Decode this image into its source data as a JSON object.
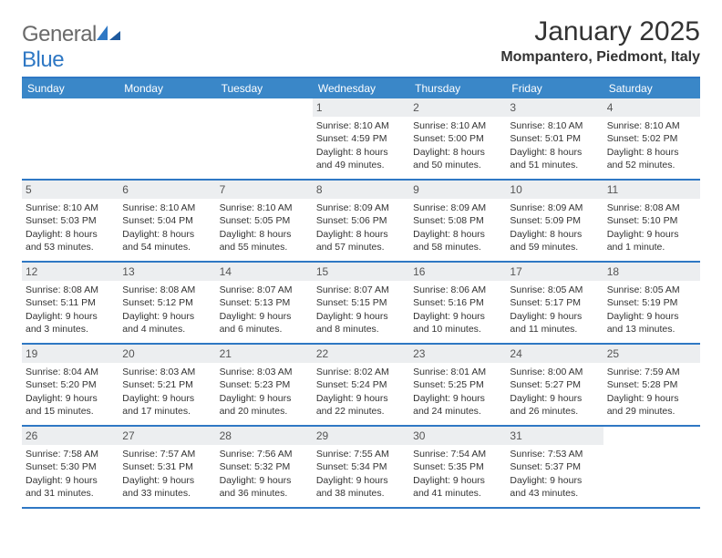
{
  "logo": {
    "part1": "General",
    "part2": "Blue"
  },
  "title": "January 2025",
  "subtitle": "Mompantero, Piedmont, Italy",
  "colors": {
    "accent": "#2f78c4",
    "header_bg": "#3a87c8",
    "daynum_bg": "#eceef0",
    "text": "#333333",
    "logo_gray": "#6a6a6a"
  },
  "day_headers": [
    "Sunday",
    "Monday",
    "Tuesday",
    "Wednesday",
    "Thursday",
    "Friday",
    "Saturday"
  ],
  "weeks": [
    [
      {
        "empty": true
      },
      {
        "empty": true
      },
      {
        "empty": true
      },
      {
        "day": "1",
        "sunrise": "8:10 AM",
        "sunset": "4:59 PM",
        "daylight_h": "8",
        "daylight_m": "49"
      },
      {
        "day": "2",
        "sunrise": "8:10 AM",
        "sunset": "5:00 PM",
        "daylight_h": "8",
        "daylight_m": "50"
      },
      {
        "day": "3",
        "sunrise": "8:10 AM",
        "sunset": "5:01 PM",
        "daylight_h": "8",
        "daylight_m": "51"
      },
      {
        "day": "4",
        "sunrise": "8:10 AM",
        "sunset": "5:02 PM",
        "daylight_h": "8",
        "daylight_m": "52"
      }
    ],
    [
      {
        "day": "5",
        "sunrise": "8:10 AM",
        "sunset": "5:03 PM",
        "daylight_h": "8",
        "daylight_m": "53"
      },
      {
        "day": "6",
        "sunrise": "8:10 AM",
        "sunset": "5:04 PM",
        "daylight_h": "8",
        "daylight_m": "54"
      },
      {
        "day": "7",
        "sunrise": "8:10 AM",
        "sunset": "5:05 PM",
        "daylight_h": "8",
        "daylight_m": "55"
      },
      {
        "day": "8",
        "sunrise": "8:09 AM",
        "sunset": "5:06 PM",
        "daylight_h": "8",
        "daylight_m": "57"
      },
      {
        "day": "9",
        "sunrise": "8:09 AM",
        "sunset": "5:08 PM",
        "daylight_h": "8",
        "daylight_m": "58"
      },
      {
        "day": "10",
        "sunrise": "8:09 AM",
        "sunset": "5:09 PM",
        "daylight_h": "8",
        "daylight_m": "59"
      },
      {
        "day": "11",
        "sunrise": "8:08 AM",
        "sunset": "5:10 PM",
        "daylight_h": "9",
        "daylight_m": "1"
      }
    ],
    [
      {
        "day": "12",
        "sunrise": "8:08 AM",
        "sunset": "5:11 PM",
        "daylight_h": "9",
        "daylight_m": "3"
      },
      {
        "day": "13",
        "sunrise": "8:08 AM",
        "sunset": "5:12 PM",
        "daylight_h": "9",
        "daylight_m": "4"
      },
      {
        "day": "14",
        "sunrise": "8:07 AM",
        "sunset": "5:13 PM",
        "daylight_h": "9",
        "daylight_m": "6"
      },
      {
        "day": "15",
        "sunrise": "8:07 AM",
        "sunset": "5:15 PM",
        "daylight_h": "9",
        "daylight_m": "8"
      },
      {
        "day": "16",
        "sunrise": "8:06 AM",
        "sunset": "5:16 PM",
        "daylight_h": "9",
        "daylight_m": "10"
      },
      {
        "day": "17",
        "sunrise": "8:05 AM",
        "sunset": "5:17 PM",
        "daylight_h": "9",
        "daylight_m": "11"
      },
      {
        "day": "18",
        "sunrise": "8:05 AM",
        "sunset": "5:19 PM",
        "daylight_h": "9",
        "daylight_m": "13"
      }
    ],
    [
      {
        "day": "19",
        "sunrise": "8:04 AM",
        "sunset": "5:20 PM",
        "daylight_h": "9",
        "daylight_m": "15"
      },
      {
        "day": "20",
        "sunrise": "8:03 AM",
        "sunset": "5:21 PM",
        "daylight_h": "9",
        "daylight_m": "17"
      },
      {
        "day": "21",
        "sunrise": "8:03 AM",
        "sunset": "5:23 PM",
        "daylight_h": "9",
        "daylight_m": "20"
      },
      {
        "day": "22",
        "sunrise": "8:02 AM",
        "sunset": "5:24 PM",
        "daylight_h": "9",
        "daylight_m": "22"
      },
      {
        "day": "23",
        "sunrise": "8:01 AM",
        "sunset": "5:25 PM",
        "daylight_h": "9",
        "daylight_m": "24"
      },
      {
        "day": "24",
        "sunrise": "8:00 AM",
        "sunset": "5:27 PM",
        "daylight_h": "9",
        "daylight_m": "26"
      },
      {
        "day": "25",
        "sunrise": "7:59 AM",
        "sunset": "5:28 PM",
        "daylight_h": "9",
        "daylight_m": "29"
      }
    ],
    [
      {
        "day": "26",
        "sunrise": "7:58 AM",
        "sunset": "5:30 PM",
        "daylight_h": "9",
        "daylight_m": "31"
      },
      {
        "day": "27",
        "sunrise": "7:57 AM",
        "sunset": "5:31 PM",
        "daylight_h": "9",
        "daylight_m": "33"
      },
      {
        "day": "28",
        "sunrise": "7:56 AM",
        "sunset": "5:32 PM",
        "daylight_h": "9",
        "daylight_m": "36"
      },
      {
        "day": "29",
        "sunrise": "7:55 AM",
        "sunset": "5:34 PM",
        "daylight_h": "9",
        "daylight_m": "38"
      },
      {
        "day": "30",
        "sunrise": "7:54 AM",
        "sunset": "5:35 PM",
        "daylight_h": "9",
        "daylight_m": "41"
      },
      {
        "day": "31",
        "sunrise": "7:53 AM",
        "sunset": "5:37 PM",
        "daylight_h": "9",
        "daylight_m": "43"
      },
      {
        "empty": true
      }
    ]
  ],
  "labels": {
    "sunrise": "Sunrise:",
    "sunset": "Sunset:",
    "daylight": "Daylight:",
    "hours": "hours",
    "and": "and",
    "minute": "minute.",
    "minutes": "minutes."
  }
}
